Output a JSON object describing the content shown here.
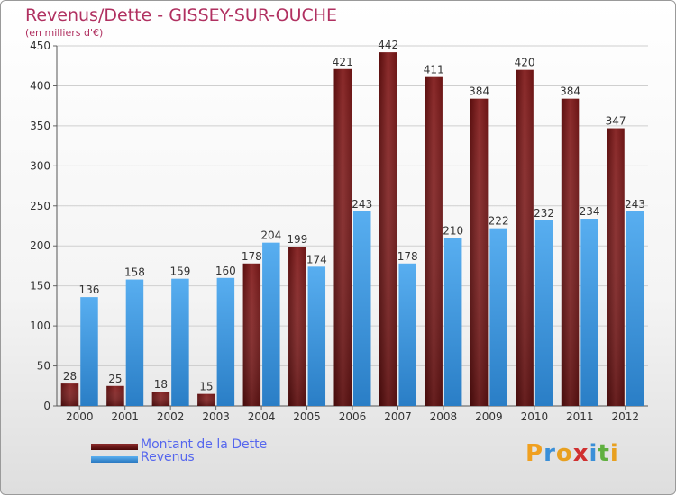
{
  "title": "Revenus/Dette - GISSEY-SUR-OUCHE",
  "subtitle": "(en milliers d'€)",
  "chart_data": {
    "type": "bar",
    "title": "Revenus/Dette - GISSEY-SUR-OUCHE",
    "ylabel": "(en milliers d'€)",
    "xlabel": "",
    "categories": [
      "2000",
      "2001",
      "2002",
      "2003",
      "2004",
      "2005",
      "2006",
      "2007",
      "2008",
      "2009",
      "2010",
      "2011",
      "2012"
    ],
    "series": [
      {
        "name": "Montant de la Dette",
        "color": "#7a1c1c",
        "values": [
          28,
          25,
          18,
          15,
          178,
          199,
          421,
          442,
          411,
          384,
          420,
          384,
          347
        ]
      },
      {
        "name": "Revenus",
        "color": "#3a93db",
        "values": [
          136,
          158,
          159,
          160,
          204,
          174,
          243,
          178,
          210,
          222,
          232,
          234,
          243
        ]
      }
    ],
    "ylim": [
      0,
      450
    ],
    "yticks": [
      0,
      50,
      100,
      150,
      200,
      250,
      300,
      350,
      400,
      450
    ],
    "grid": true,
    "legend": "bottom-left"
  },
  "legend": [
    {
      "label": "Montant de la Dette",
      "color": "#6b0f0f"
    },
    {
      "label": "Revenus",
      "color": "#3a93db"
    }
  ],
  "logo": {
    "letters": [
      "P",
      "r",
      "o",
      "x",
      "i",
      "t",
      "i"
    ],
    "colors": [
      "#f0a020",
      "#3a8fd8",
      "#e8a020",
      "#d03030",
      "#3a8fd8",
      "#60b040",
      "#e8a020"
    ]
  }
}
